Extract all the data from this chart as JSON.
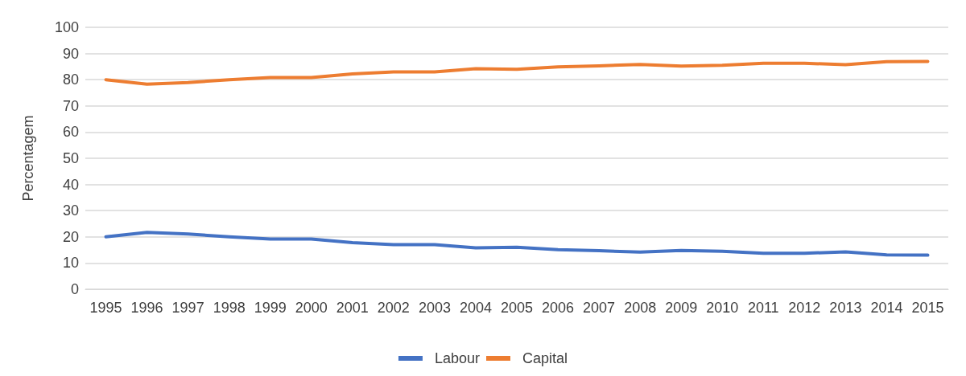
{
  "chart_data": {
    "type": "line",
    "ylabel": "Percentagem",
    "categories": [
      "1995",
      "1996",
      "1997",
      "1998",
      "1999",
      "2000",
      "2001",
      "2002",
      "2003",
      "2004",
      "2005",
      "2006",
      "2007",
      "2008",
      "2009",
      "2010",
      "2011",
      "2012",
      "2013",
      "2014",
      "2015"
    ],
    "series": [
      {
        "name": "Labour",
        "color": "#4472c4",
        "values": [
          20,
          21.7,
          21.1,
          20,
          19.2,
          19.2,
          17.8,
          17,
          17,
          15.8,
          16,
          15.1,
          14.7,
          14.2,
          14.8,
          14.5,
          13.7,
          13.7,
          14.3,
          13.1,
          13
        ]
      },
      {
        "name": "Capital",
        "color": "#ed7d31",
        "values": [
          80,
          78.3,
          78.9,
          80,
          80.8,
          80.8,
          82.2,
          83,
          83,
          84.2,
          84,
          84.9,
          85.3,
          85.8,
          85.2,
          85.5,
          86.3,
          86.3,
          85.7,
          86.9,
          87
        ]
      }
    ],
    "ylim": [
      0,
      100
    ],
    "yticks": [
      0,
      10,
      20,
      30,
      40,
      50,
      60,
      70,
      80,
      90,
      100
    ],
    "grid": "y",
    "legend": "bottom",
    "marker": "none",
    "line_style": "solid"
  }
}
